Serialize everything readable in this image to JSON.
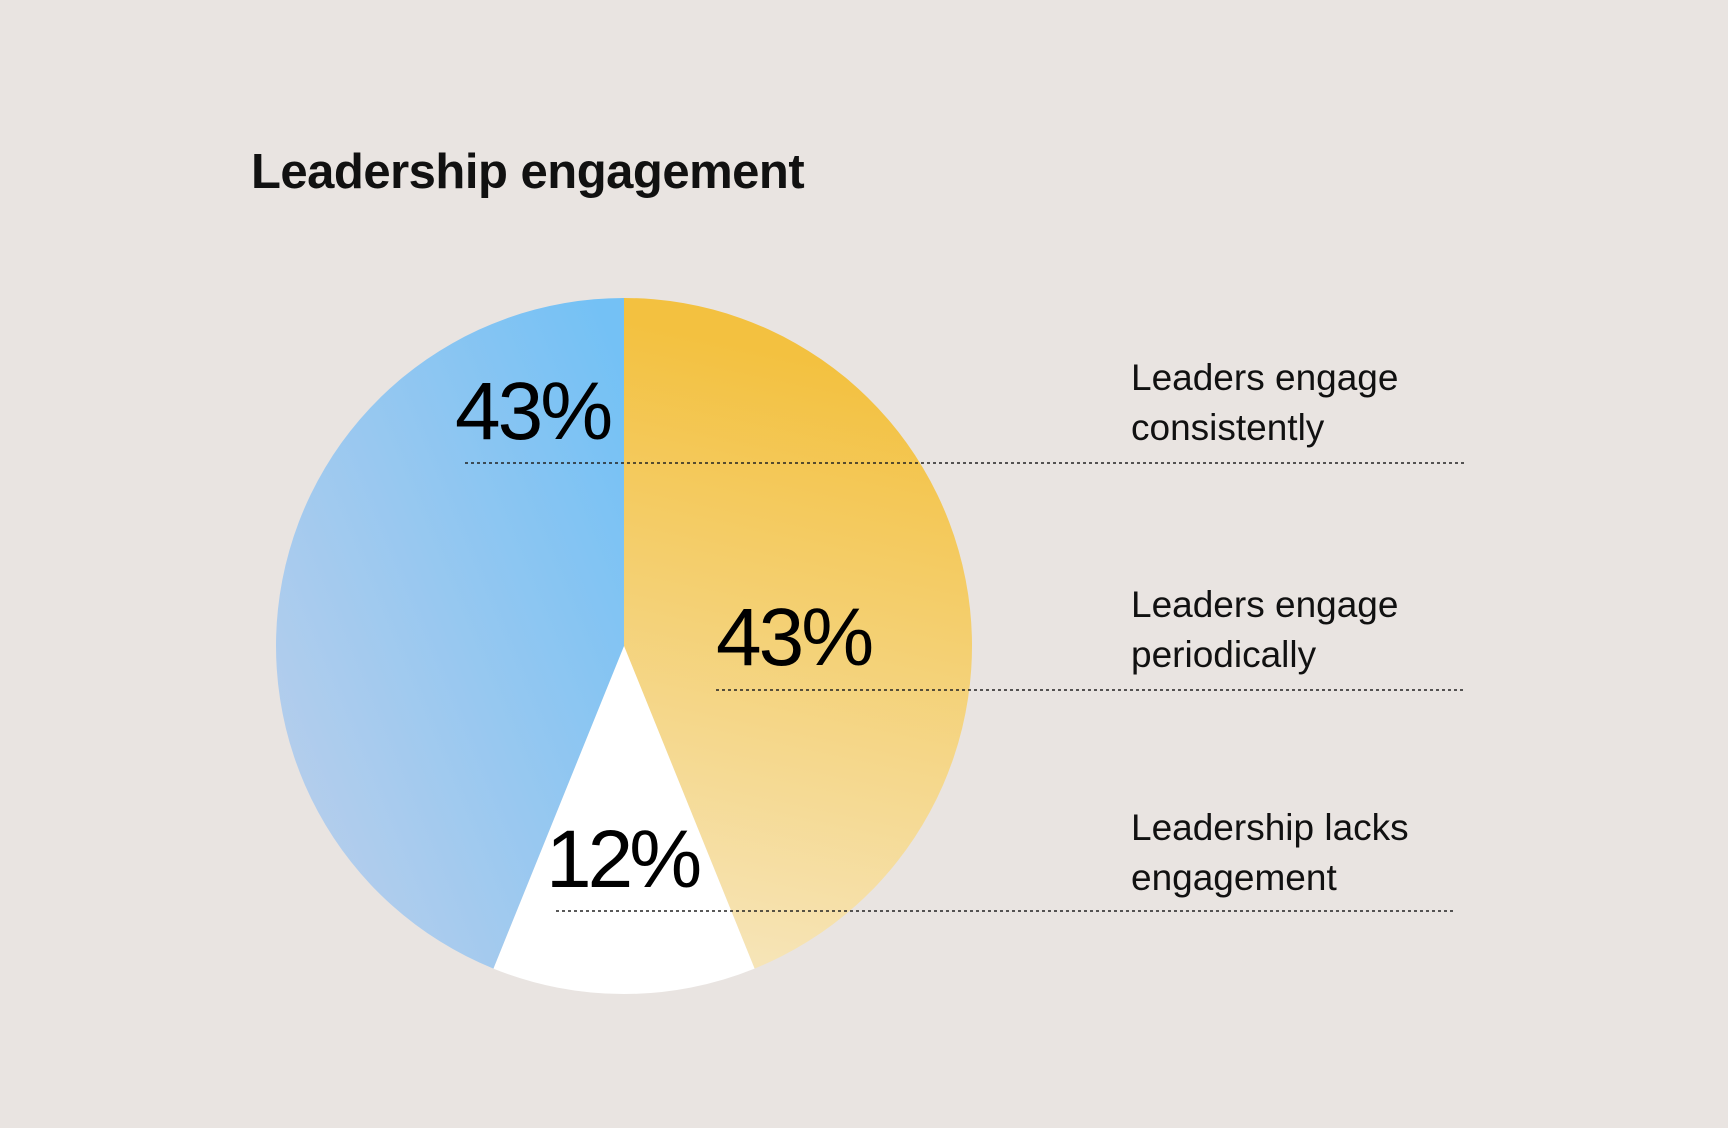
{
  "chart_data": {
    "type": "pie",
    "title": "Leadership engagement",
    "slices": [
      {
        "label": "Leaders engage consistently",
        "value": 43,
        "value_label": "43%",
        "color": "#7cc4f4",
        "color2": "#b9cdee"
      },
      {
        "label": "Leaders engage periodically",
        "value": 43,
        "value_label": "43%",
        "color": "#f3c144",
        "color2": "#f6e2b0"
      },
      {
        "label": "Leadership lacks engagement",
        "value": 12,
        "value_label": "12%",
        "color": "#ffffff",
        "color2": "#ffffff"
      }
    ],
    "legend": "right",
    "background": "#e9e4e1"
  }
}
